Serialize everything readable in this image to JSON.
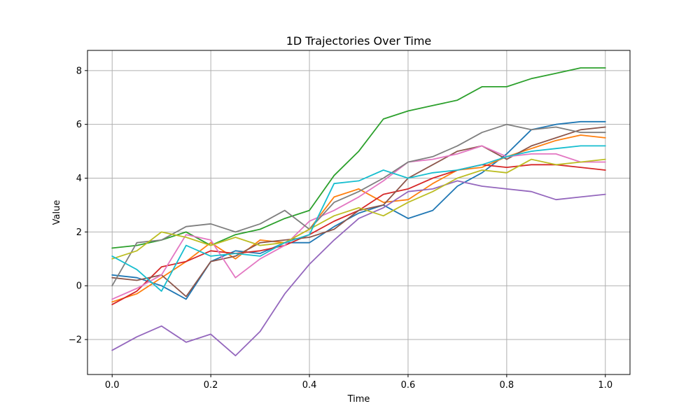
{
  "chart_data": {
    "type": "line",
    "title": "1D Trajectories Over Time",
    "xlabel": "Time",
    "ylabel": "Value",
    "xlim": [
      -0.05,
      1.05
    ],
    "ylim": [
      -3.3,
      8.75
    ],
    "x_ticks": [
      0.0,
      0.2,
      0.4,
      0.6,
      0.8,
      1.0
    ],
    "x_tick_labels": [
      "0.0",
      "0.2",
      "0.4",
      "0.6",
      "0.8",
      "1.0"
    ],
    "y_ticks": [
      -2,
      0,
      2,
      4,
      6,
      8
    ],
    "y_tick_labels": [
      "−2",
      "0",
      "2",
      "4",
      "6",
      "8"
    ],
    "grid": true,
    "legend": "none",
    "x": [
      0.0,
      0.05,
      0.1,
      0.15,
      0.2,
      0.25,
      0.3,
      0.35,
      0.4,
      0.45,
      0.5,
      0.55,
      0.6,
      0.65,
      0.7,
      0.75,
      0.8,
      0.85,
      0.9,
      0.95,
      1.0
    ],
    "series": [
      {
        "color": "#1f77b4",
        "values": [
          0.4,
          0.3,
          0.0,
          -0.5,
          0.9,
          1.3,
          1.2,
          1.6,
          1.6,
          2.2,
          2.7,
          3.0,
          2.5,
          2.8,
          3.7,
          4.2,
          4.9,
          5.8,
          6.0,
          6.1,
          6.1
        ]
      },
      {
        "color": "#ff7f0e",
        "values": [
          -0.6,
          -0.3,
          0.3,
          0.9,
          1.6,
          1.0,
          1.7,
          1.6,
          2.1,
          3.3,
          3.6,
          3.1,
          3.2,
          3.8,
          4.3,
          4.4,
          4.8,
          5.1,
          5.4,
          5.6,
          5.5
        ]
      },
      {
        "color": "#2ca02c",
        "values": [
          1.4,
          1.5,
          1.7,
          2.0,
          1.5,
          1.9,
          2.1,
          2.5,
          2.8,
          4.1,
          5.0,
          6.2,
          6.5,
          6.7,
          6.9,
          7.4,
          7.4,
          7.7,
          7.9,
          8.1,
          8.1
        ]
      },
      {
        "color": "#d62728",
        "values": [
          -0.7,
          -0.2,
          0.7,
          0.9,
          1.3,
          1.2,
          1.3,
          1.5,
          1.9,
          2.4,
          2.8,
          3.4,
          3.6,
          4.0,
          4.3,
          4.5,
          4.4,
          4.5,
          4.5,
          4.4,
          4.3
        ]
      },
      {
        "color": "#9467bd",
        "values": [
          -2.4,
          -1.9,
          -1.5,
          -2.1,
          -1.8,
          -2.6,
          -1.7,
          -0.3,
          0.8,
          1.7,
          2.5,
          2.9,
          3.5,
          3.6,
          3.9,
          3.7,
          3.6,
          3.5,
          3.2,
          3.3,
          3.4
        ]
      },
      {
        "color": "#8c564b",
        "values": [
          0.3,
          0.2,
          0.4,
          -0.4,
          0.9,
          1.1,
          1.6,
          1.7,
          1.8,
          2.1,
          2.8,
          3.0,
          4.0,
          4.5,
          5.0,
          5.2,
          4.7,
          5.2,
          5.5,
          5.8,
          5.9
        ]
      },
      {
        "color": "#e377c2",
        "values": [
          -0.5,
          -0.1,
          0.4,
          1.9,
          1.7,
          0.3,
          1.0,
          1.5,
          2.4,
          2.8,
          3.3,
          3.9,
          4.6,
          4.7,
          4.9,
          5.2,
          4.8,
          4.9,
          4.9,
          4.6,
          4.6
        ]
      },
      {
        "color": "#7f7f7f",
        "values": [
          0.0,
          1.6,
          1.7,
          2.2,
          2.3,
          2.0,
          2.3,
          2.8,
          2.1,
          3.1,
          3.5,
          4.0,
          4.6,
          4.8,
          5.2,
          5.7,
          6.0,
          5.8,
          5.9,
          5.7,
          5.7
        ]
      },
      {
        "color": "#bcbd22",
        "values": [
          1.0,
          1.3,
          2.0,
          1.8,
          1.5,
          1.8,
          1.5,
          1.6,
          2.1,
          2.6,
          2.9,
          2.6,
          3.1,
          3.5,
          4.0,
          4.3,
          4.2,
          4.7,
          4.5,
          4.6,
          4.7
        ]
      },
      {
        "color": "#17becf",
        "values": [
          1.1,
          0.6,
          -0.2,
          1.5,
          1.1,
          1.2,
          1.1,
          1.6,
          1.9,
          3.8,
          3.9,
          4.3,
          4.0,
          4.2,
          4.3,
          4.5,
          4.8,
          5.0,
          5.1,
          5.2,
          5.2
        ]
      }
    ]
  }
}
